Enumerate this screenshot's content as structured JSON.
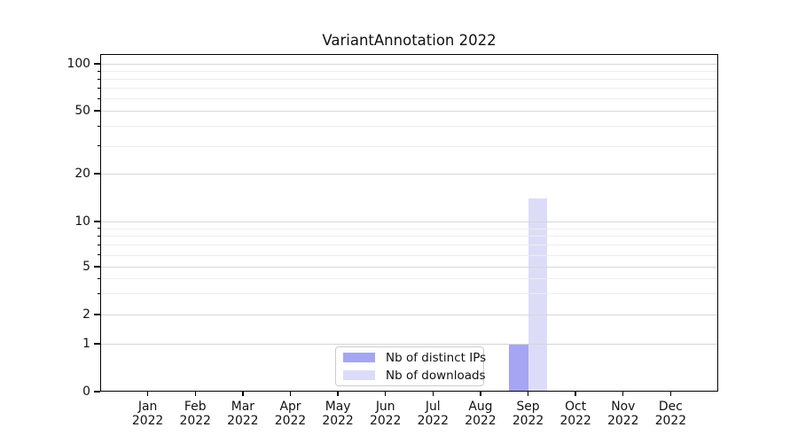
{
  "chart_data": {
    "type": "bar",
    "title": "VariantAnnotation 2022",
    "categories": [
      {
        "line1": "Jan",
        "line2": "2022"
      },
      {
        "line1": "Feb",
        "line2": "2022"
      },
      {
        "line1": "Mar",
        "line2": "2022"
      },
      {
        "line1": "Apr",
        "line2": "2022"
      },
      {
        "line1": "May",
        "line2": "2022"
      },
      {
        "line1": "Jun",
        "line2": "2022"
      },
      {
        "line1": "Jul",
        "line2": "2022"
      },
      {
        "line1": "Aug",
        "line2": "2022"
      },
      {
        "line1": "Sep",
        "line2": "2022"
      },
      {
        "line1": "Oct",
        "line2": "2022"
      },
      {
        "line1": "Nov",
        "line2": "2022"
      },
      {
        "line1": "Dec",
        "line2": "2022"
      }
    ],
    "series": [
      {
        "name": "Nb of distinct IPs",
        "color": "#a5a5f2",
        "values": [
          0,
          0,
          0,
          0,
          0,
          0,
          0,
          0,
          1,
          0,
          0,
          0
        ]
      },
      {
        "name": "Nb of downloads",
        "color": "#dcdcf9",
        "values": [
          0,
          0,
          0,
          0,
          0,
          0,
          0,
          0,
          14,
          0,
          0,
          0
        ]
      }
    ],
    "y_axis": {
      "scale": "symlog",
      "ticks": [
        0,
        1,
        2,
        5,
        10,
        20,
        50,
        100
      ],
      "minor_ticks": [
        3,
        4,
        6,
        7,
        8,
        9,
        30,
        40,
        60,
        70,
        80,
        90
      ],
      "range": [
        0,
        115
      ]
    },
    "legend": {
      "position": "lower center"
    },
    "grid": true,
    "colors": {
      "grid_major": "#d6d6d6",
      "grid_minor": "#ededed",
      "spine": "#000000",
      "background": "#ffffff"
    }
  }
}
